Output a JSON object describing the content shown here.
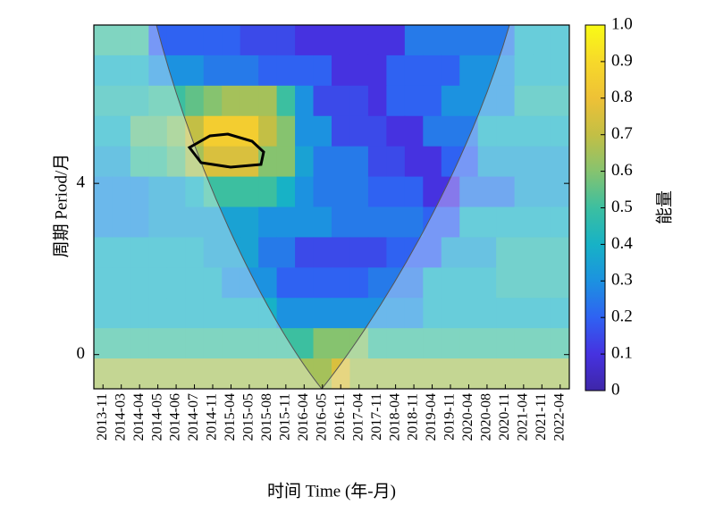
{
  "chart_data": {
    "type": "heatmap",
    "xlabel": "时间 Time (年-月)",
    "ylabel": "周期 Period/月",
    "categories": [
      "2013-11",
      "2014-03",
      "2014-04",
      "2014-05",
      "2014-06",
      "2014-07",
      "2014-11",
      "2015-04",
      "2015-05",
      "2015-08",
      "2015-11",
      "2016-04",
      "2016-05",
      "2016-11",
      "2017-04",
      "2017-11",
      "2018-04",
      "2018-11",
      "2019-04",
      "2019-11",
      "2020-04",
      "2020-08",
      "2020-11",
      "2021-04",
      "2021-11",
      "2022-04"
    ],
    "ylim": [
      -0.8,
      7.7
    ],
    "yticks": [
      0,
      4
    ],
    "colorbar_label": "能量",
    "clim": [
      0,
      1
    ],
    "cticks": [
      0,
      0.1,
      0.2,
      0.3,
      0.4,
      0.5,
      0.6,
      0.7,
      0.8,
      0.9,
      {
        "value": 1,
        "label": "1.0"
      }
    ],
    "z": [
      [
        0.5,
        0.5,
        0.5,
        0.2,
        0.2,
        0.2,
        0.2,
        0.2,
        0.15,
        0.15,
        0.15,
        0.1,
        0.1,
        0.1,
        0.1,
        0.1,
        0.1,
        0.25,
        0.25,
        0.25,
        0.25,
        0.25,
        0.25,
        0.4,
        0.4,
        0.4
      ],
      [
        0.4,
        0.4,
        0.4,
        0.3,
        0.3,
        0.3,
        0.25,
        0.25,
        0.25,
        0.2,
        0.2,
        0.2,
        0.2,
        0.1,
        0.1,
        0.1,
        0.2,
        0.2,
        0.2,
        0.2,
        0.3,
        0.3,
        0.3,
        0.4,
        0.4,
        0.4
      ],
      [
        0.45,
        0.45,
        0.45,
        0.5,
        0.5,
        0.55,
        0.6,
        0.65,
        0.65,
        0.65,
        0.5,
        0.3,
        0.15,
        0.15,
        0.15,
        0.1,
        0.2,
        0.2,
        0.2,
        0.3,
        0.3,
        0.3,
        0.3,
        0.45,
        0.45,
        0.45
      ],
      [
        0.4,
        0.4,
        0.55,
        0.55,
        0.6,
        0.7,
        0.85,
        0.85,
        0.85,
        0.7,
        0.6,
        0.3,
        0.3,
        0.15,
        0.15,
        0.15,
        0.1,
        0.1,
        0.25,
        0.25,
        0.25,
        0.4,
        0.4,
        0.4,
        0.4,
        0.4
      ],
      [
        0.35,
        0.35,
        0.5,
        0.5,
        0.55,
        0.65,
        0.75,
        0.75,
        0.75,
        0.6,
        0.6,
        0.35,
        0.25,
        0.25,
        0.25,
        0.15,
        0.15,
        0.1,
        0.1,
        0.2,
        0.2,
        0.35,
        0.35,
        0.35,
        0.35,
        0.35
      ],
      [
        0.3,
        0.3,
        0.3,
        0.35,
        0.35,
        0.4,
        0.5,
        0.5,
        0.5,
        0.5,
        0.4,
        0.3,
        0.25,
        0.25,
        0.25,
        0.2,
        0.2,
        0.2,
        0.1,
        0.1,
        0.25,
        0.25,
        0.25,
        0.35,
        0.35,
        0.35
      ],
      [
        0.3,
        0.3,
        0.3,
        0.35,
        0.35,
        0.35,
        0.35,
        0.35,
        0.35,
        0.3,
        0.3,
        0.3,
        0.3,
        0.25,
        0.25,
        0.25,
        0.25,
        0.25,
        0.2,
        0.2,
        0.4,
        0.4,
        0.4,
        0.4,
        0.4,
        0.4
      ],
      [
        0.4,
        0.4,
        0.4,
        0.4,
        0.4,
        0.4,
        0.35,
        0.35,
        0.35,
        0.25,
        0.25,
        0.15,
        0.15,
        0.15,
        0.15,
        0.15,
        0.2,
        0.2,
        0.2,
        0.35,
        0.35,
        0.35,
        0.45,
        0.45,
        0.45,
        0.45
      ],
      [
        0.4,
        0.4,
        0.4,
        0.4,
        0.4,
        0.4,
        0.4,
        0.3,
        0.3,
        0.3,
        0.2,
        0.2,
        0.2,
        0.2,
        0.2,
        0.25,
        0.25,
        0.25,
        0.4,
        0.4,
        0.4,
        0.4,
        0.45,
        0.45,
        0.45,
        0.45
      ],
      [
        0.4,
        0.4,
        0.4,
        0.4,
        0.4,
        0.4,
        0.4,
        0.4,
        0.4,
        0.4,
        0.3,
        0.3,
        0.3,
        0.3,
        0.3,
        0.3,
        0.3,
        0.3,
        0.4,
        0.4,
        0.4,
        0.4,
        0.4,
        0.4,
        0.4,
        0.4
      ],
      [
        0.5,
        0.5,
        0.5,
        0.5,
        0.5,
        0.5,
        0.5,
        0.5,
        0.5,
        0.5,
        0.5,
        0.5,
        0.6,
        0.6,
        0.6,
        0.5,
        0.5,
        0.5,
        0.5,
        0.5,
        0.5,
        0.5,
        0.5,
        0.5,
        0.5,
        0.5
      ],
      [
        0.65,
        0.65,
        0.65,
        0.65,
        0.65,
        0.65,
        0.65,
        0.65,
        0.65,
        0.65,
        0.65,
        0.65,
        0.65,
        0.75,
        0.65,
        0.65,
        0.65,
        0.65,
        0.65,
        0.65,
        0.65,
        0.65,
        0.65,
        0.65,
        0.65,
        0.65
      ]
    ]
  }
}
